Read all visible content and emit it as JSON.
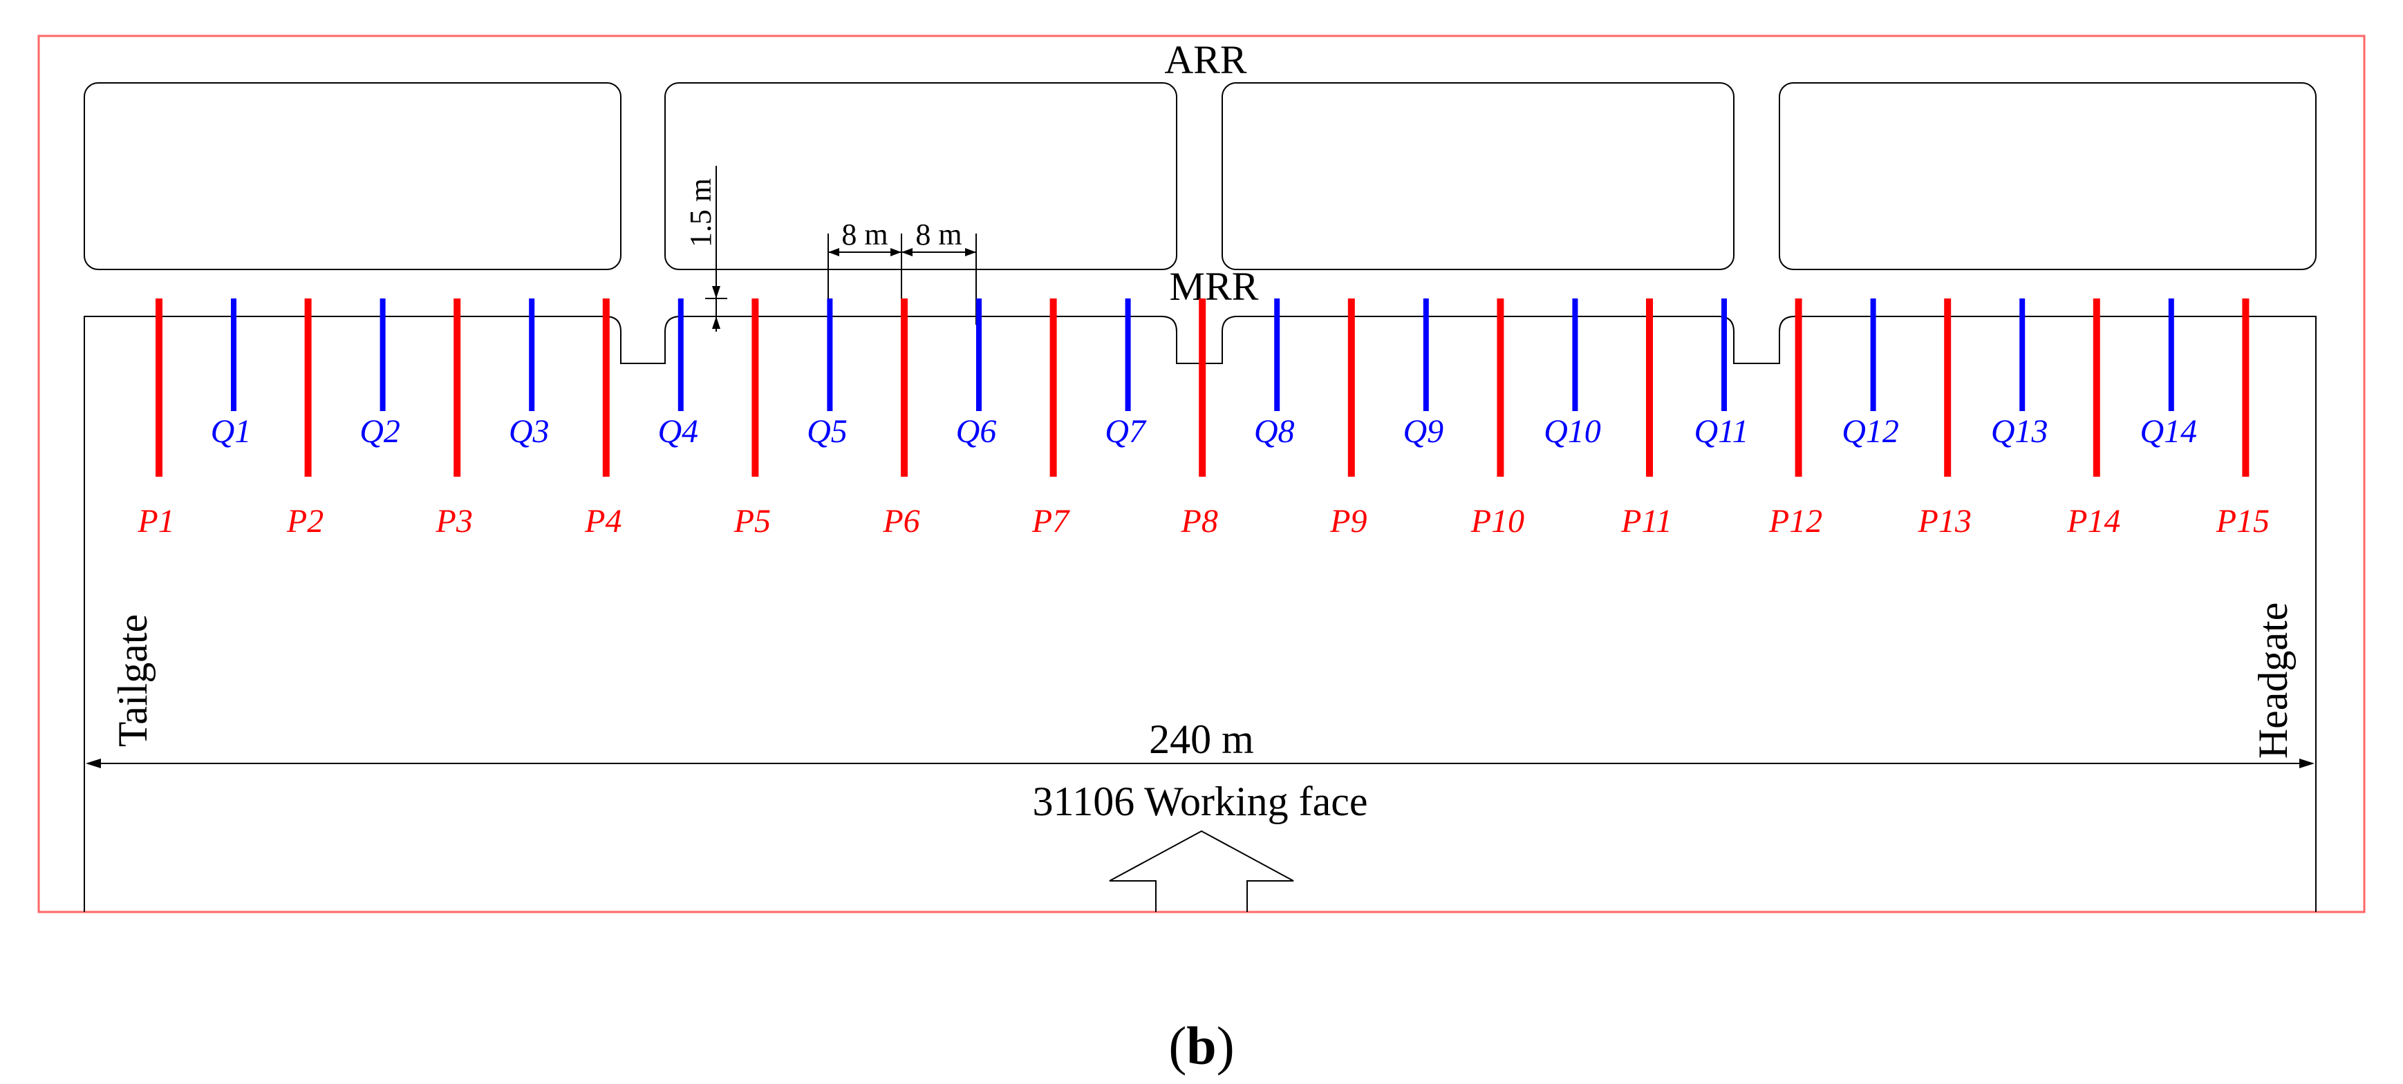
{
  "labels": {
    "arr": "ARR",
    "mrr": "MRR",
    "tailgate": "Tailgate",
    "headgate": "Headgate",
    "face_length": "240 m",
    "working_face": "31106 Working face",
    "dim_vertical": "1.5 m",
    "dim_spacing_left": "8 m",
    "dim_spacing_right": "8 m"
  },
  "caption": {
    "open": "(",
    "letter": "b",
    "close": ")"
  },
  "holes_p": [
    "P1",
    "P2",
    "P3",
    "P4",
    "P5",
    "P6",
    "P7",
    "P8",
    "P9",
    "P10",
    "P11",
    "P12",
    "P13",
    "P14",
    "P15"
  ],
  "holes_q": [
    "Q1",
    "Q2",
    "Q3",
    "Q4",
    "Q5",
    "Q6",
    "Q7",
    "Q8",
    "Q9",
    "Q10",
    "Q11",
    "Q12",
    "Q13",
    "Q14"
  ],
  "colors": {
    "p_hole": "#ff0000",
    "q_hole": "#0000ff",
    "frame": "#ff6666",
    "line": "#000000"
  }
}
